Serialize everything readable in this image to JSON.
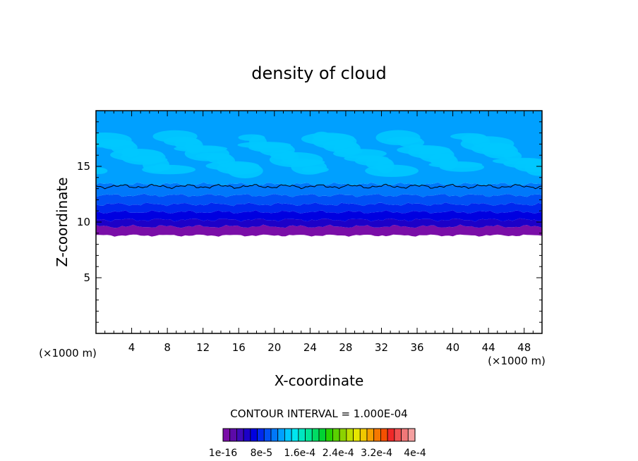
{
  "chart_data": {
    "type": "heatmap",
    "title": "density of cloud",
    "xlabel": "X-coordinate",
    "ylabel": "Z-coordinate",
    "x_unit_left": "(×1000 m)",
    "x_unit_right": "(×1000 m)",
    "xlim": [
      0,
      50
    ],
    "ylim": [
      0,
      20
    ],
    "x_ticks": [
      4,
      8,
      12,
      16,
      20,
      24,
      28,
      32,
      36,
      40,
      44,
      48
    ],
    "y_ticks": [
      5,
      10,
      15
    ],
    "contour_interval_text": "CONTOUR INTERVAL = 1.000E-04",
    "contour_level_z": 13.2,
    "colorbar": {
      "labels": [
        "1e-16",
        "8e-5",
        "1.6e-4",
        "2.4e-4",
        "3.2e-4",
        "4e-4"
      ],
      "colors": [
        "#7a0ea8",
        "#5c0aa8",
        "#3f0ab8",
        "#1c00c8",
        "#0000e0",
        "#0028ee",
        "#0050f5",
        "#0078fa",
        "#00a0ff",
        "#00c8ff",
        "#00e6f0",
        "#00e6c0",
        "#00e696",
        "#00dc64",
        "#00d232",
        "#28d200",
        "#5ad200",
        "#8cd200",
        "#bede00",
        "#e6e600",
        "#f0c800",
        "#f5a000",
        "#f57800",
        "#f55000",
        "#f02828",
        "#f05050",
        "#f07878",
        "#f5a0a0"
      ]
    },
    "layers": [
      {
        "zmin": 8.8,
        "zmax": 9.6,
        "color": "#7a0ea8"
      },
      {
        "zmin": 9.6,
        "zmax": 10.2,
        "color": "#1c00c8"
      },
      {
        "zmin": 10.2,
        "zmax": 10.9,
        "color": "#0000e0"
      },
      {
        "zmin": 10.9,
        "zmax": 11.6,
        "color": "#0028ee"
      },
      {
        "zmin": 11.6,
        "zmax": 12.4,
        "color": "#0050f5"
      },
      {
        "zmin": 12.4,
        "zmax": 13.4,
        "color": "#0078fa"
      },
      {
        "zmin": 13.4,
        "zmax": 20.0,
        "color": "#00a0ff"
      }
    ],
    "bright_region": {
      "zmin": 14.6,
      "zmax": 17.8,
      "color": "#00c8ff"
    }
  }
}
